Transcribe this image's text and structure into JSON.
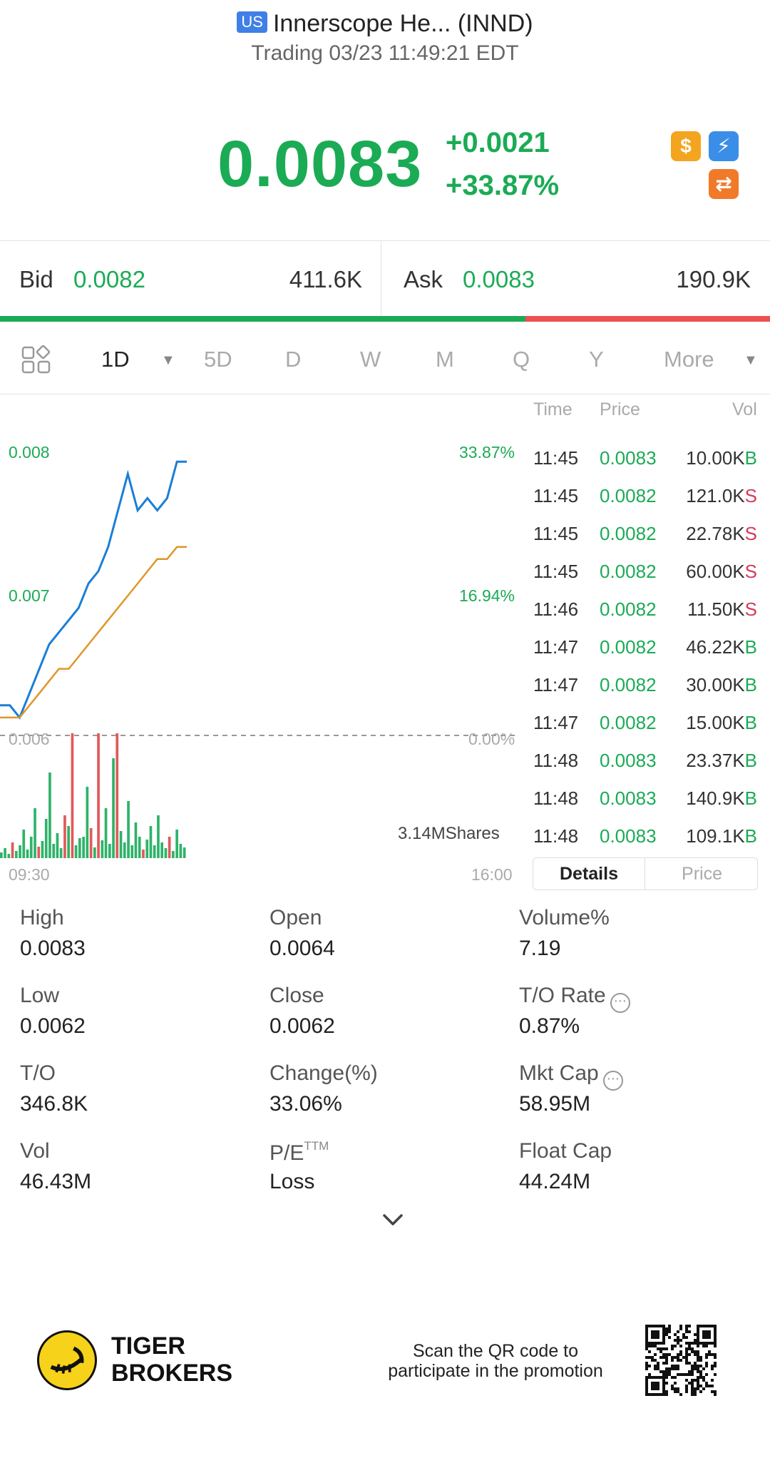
{
  "header": {
    "market_badge": "US",
    "title": "Innerscope He... (INND)",
    "status": "Trading 03/23 11:49:21 EDT"
  },
  "quote": {
    "price": "0.0083",
    "change": "+0.0021",
    "change_pct": "+33.87%",
    "icons": [
      "dollar-icon",
      "flash-icon",
      "swap-icon"
    ]
  },
  "bid_ask": {
    "bid_label": "Bid",
    "bid_price": "0.0082",
    "bid_size": "411.6K",
    "ask_label": "Ask",
    "ask_price": "0.0083",
    "ask_size": "190.9K",
    "bid_ratio": 0.682
  },
  "period_tabs": {
    "items": [
      "1D",
      "5D",
      "D",
      "W",
      "M",
      "Q",
      "Y",
      "More"
    ],
    "active": "1D"
  },
  "chart": {
    "y_labels": [
      "0.008",
      "0.007",
      "0.006"
    ],
    "pct_labels": [
      "33.87%",
      "16.94%",
      "0.00%"
    ],
    "x_start": "09:30",
    "x_end": "16:00",
    "volume_label": "3.14MShares",
    "colors": {
      "price_line": "#1a7fd6",
      "avg_line": "#e0962a",
      "up": "#2fb36a",
      "down": "#e05a5a"
    }
  },
  "chart_data": {
    "type": "line",
    "title": "",
    "xlabel": "",
    "ylabel": "",
    "ylim": [
      0.0061,
      0.0085
    ],
    "x_ticks": [
      "09:30",
      "16:00"
    ],
    "series": [
      {
        "values": [
          0.0063,
          0.0063,
          0.0062,
          0.0064,
          0.0066,
          0.0068,
          0.0069,
          0.007,
          0.0071,
          0.0073,
          0.0074,
          0.0076,
          0.0079,
          0.0082,
          0.0079,
          0.008,
          0.0079,
          0.008,
          0.0083,
          0.0083
        ]
      },
      {
        "values": [
          0.0062,
          0.0062,
          0.0062,
          0.0063,
          0.0064,
          0.0065,
          0.0066,
          0.0066,
          0.0067,
          0.0068,
          0.0069,
          0.007,
          0.0071,
          0.0072,
          0.0073,
          0.0074,
          0.0075,
          0.0075,
          0.0076,
          0.0076
        ]
      }
    ]
  },
  "trades": {
    "headers": {
      "time": "Time",
      "price": "Price",
      "vol": "Vol"
    },
    "rows": [
      {
        "time": "11:45",
        "price": "0.0083",
        "vol": "10.00K",
        "side": "B"
      },
      {
        "time": "11:45",
        "price": "0.0082",
        "vol": "121.0K",
        "side": "S"
      },
      {
        "time": "11:45",
        "price": "0.0082",
        "vol": "22.78K",
        "side": "S"
      },
      {
        "time": "11:45",
        "price": "0.0082",
        "vol": "60.00K",
        "side": "S"
      },
      {
        "time": "11:46",
        "price": "0.0082",
        "vol": "11.50K",
        "side": "S"
      },
      {
        "time": "11:47",
        "price": "0.0082",
        "vol": "46.22K",
        "side": "B"
      },
      {
        "time": "11:47",
        "price": "0.0082",
        "vol": "30.00K",
        "side": "B"
      },
      {
        "time": "11:47",
        "price": "0.0082",
        "vol": "15.00K",
        "side": "B"
      },
      {
        "time": "11:48",
        "price": "0.0083",
        "vol": "23.37K",
        "side": "B"
      },
      {
        "time": "11:48",
        "price": "0.0083",
        "vol": "140.9K",
        "side": "B"
      },
      {
        "time": "11:48",
        "price": "0.0083",
        "vol": "109.1K",
        "side": "B"
      }
    ],
    "tabs": [
      "Details",
      "Price"
    ]
  },
  "stats": {
    "high_label": "High",
    "high": "0.0083",
    "open_label": "Open",
    "open": "0.0064",
    "volpct_label": "Volume%",
    "volpct": "7.19",
    "low_label": "Low",
    "low": "0.0062",
    "close_label": "Close",
    "close": "0.0062",
    "toRate_label": "T/O Rate",
    "toRate": "0.87%",
    "to_label": "T/O",
    "to": "346.8K",
    "changepct_label": "Change(%)",
    "changepct": "33.06%",
    "mktcap_label": "Mkt Cap",
    "mktcap": "58.95M",
    "vol_label": "Vol",
    "vol": "46.43M",
    "pe_label": "P/E",
    "pe_sup": "TTM",
    "pe": "Loss",
    "floatcap_label": "Float Cap",
    "floatcap": "44.24M"
  },
  "footer": {
    "brand_line1": "TIGER",
    "brand_line2": "BROKERS",
    "promo_line1": "Scan the QR code to",
    "promo_line2": "participate in the promotion"
  }
}
